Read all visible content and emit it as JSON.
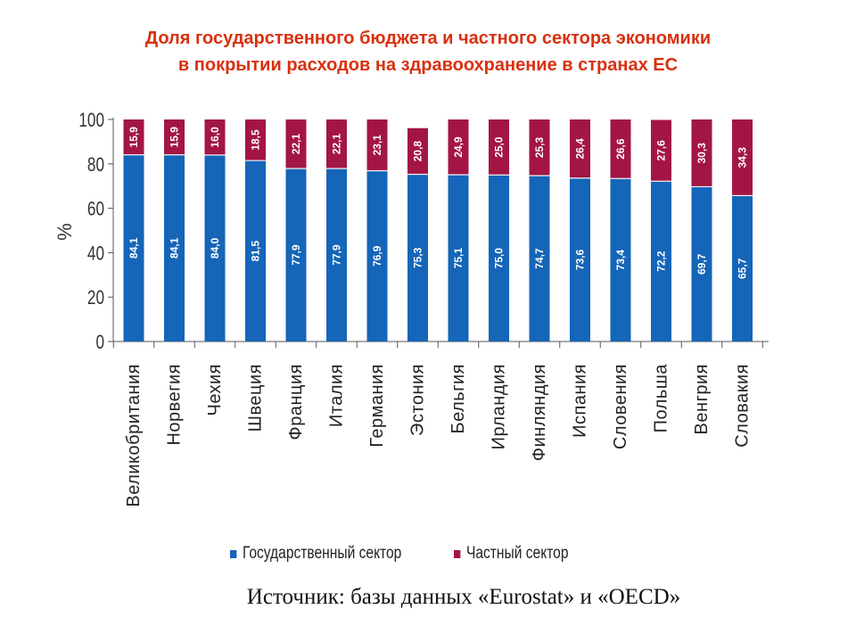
{
  "title": {
    "line1": "Доля государственного бюджета и частного сектора экономики",
    "line2": "в покрытии расходов на здравоохранение в странах ЕС"
  },
  "source": "Источник: базы данных «Eurostat» и «OECD»",
  "chart_data": {
    "type": "bar",
    "stacked": true,
    "ylabel": "%",
    "ylim": [
      0,
      100
    ],
    "yticks": [
      "0",
      "20",
      "40",
      "60",
      "80",
      "100"
    ],
    "categories": [
      "Великобритания",
      "Норвегия",
      "Чехия",
      "Швеция",
      "Франция",
      "Италия",
      "Германия",
      "Эстония",
      "Бельгия",
      "Ирландия",
      "Финляндия",
      "Испания",
      "Словения",
      "Польша",
      "Венгрия",
      "Словакия"
    ],
    "series": [
      {
        "name": "Государственный сектор",
        "color": "#1565b8",
        "values": [
          84.1,
          84.1,
          84.0,
          81.5,
          77.9,
          77.9,
          76.9,
          75.3,
          75.1,
          75.0,
          74.7,
          73.6,
          73.4,
          72.2,
          69.7,
          65.7
        ],
        "labels": [
          "84,1",
          "84,1",
          "84,0",
          "81,5",
          "77,9",
          "77,9",
          "76,9",
          "75,3",
          "75,1",
          "75,0",
          "74,7",
          "73,6",
          "73,4",
          "72,2",
          "69,7",
          "65,7"
        ]
      },
      {
        "name": "Частный сектор",
        "color": "#a31545",
        "values": [
          15.9,
          15.9,
          16.0,
          18.5,
          22.1,
          22.1,
          23.1,
          20.8,
          24.9,
          25.0,
          25.3,
          26.4,
          26.6,
          27.6,
          30.3,
          34.3
        ],
        "labels": [
          "15,9",
          "15,9",
          "16,0",
          "18,5",
          "22,1",
          "22,1",
          "23,1",
          "20,8",
          "24,9",
          "25,0",
          "25,3",
          "26,4",
          "26,6",
          "27,6",
          "30,3",
          "34,3"
        ]
      }
    ],
    "legend_position": "bottom"
  }
}
